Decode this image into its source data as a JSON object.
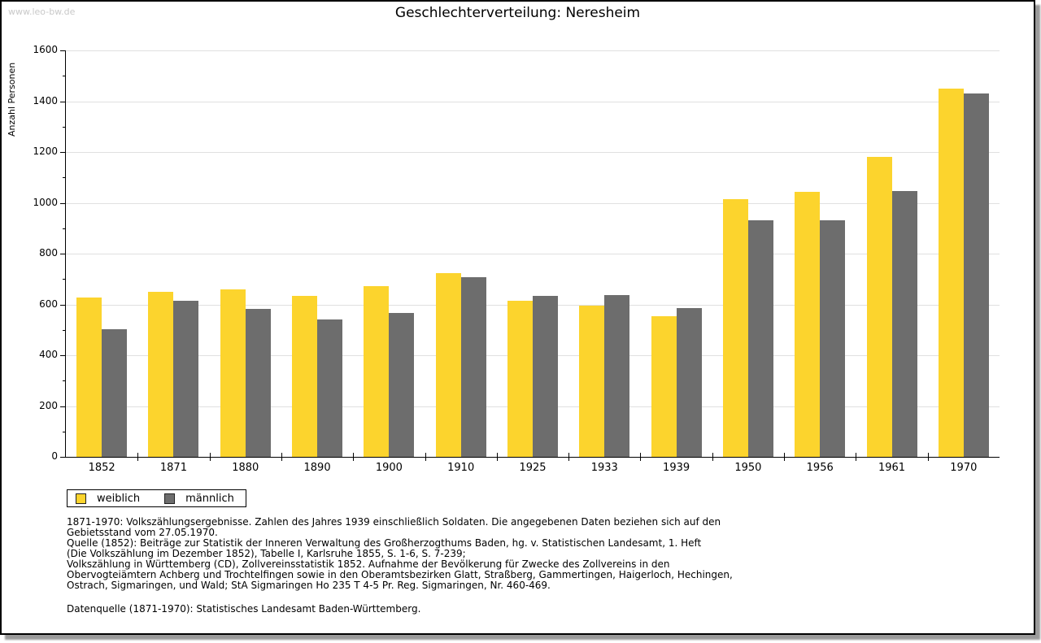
{
  "watermark": {
    "text": "www.leo-bw.de"
  },
  "chart_data": {
    "type": "bar",
    "title": "Geschlechterverteilung: Neresheim",
    "xlabel": "",
    "ylabel": "Anzahl Personen",
    "categories": [
      "1852",
      "1871",
      "1880",
      "1890",
      "1900",
      "1910",
      "1925",
      "1933",
      "1939",
      "1950",
      "1956",
      "1961",
      "1970"
    ],
    "series": [
      {
        "name": "weiblich",
        "color": "#fcd42d",
        "values": [
          627,
          650,
          658,
          634,
          672,
          724,
          614,
          596,
          554,
          1014,
          1043,
          1182,
          1450
        ]
      },
      {
        "name": "männlich",
        "color": "#6d6d6d",
        "values": [
          504,
          614,
          583,
          541,
          565,
          708,
          634,
          637,
          586,
          931,
          931,
          1046,
          1432
        ]
      }
    ],
    "ylim": [
      0,
      1600
    ],
    "ytick_major": 200,
    "ytick_minor": 100,
    "grid": "horizontal-major",
    "gridline_color": "#e0e0e0",
    "legend_position": "bottom-left"
  },
  "legend": {
    "items": [
      {
        "label": "weiblich",
        "color": "#fcd42d"
      },
      {
        "label": "männlich",
        "color": "#6d6d6d"
      }
    ]
  },
  "footnotes": {
    "lines": [
      "1871-1970: Volkszählungsergebnisse. Zahlen des Jahres 1939 einschließlich Soldaten. Die angegebenen Daten beziehen sich auf den",
      "Gebietsstand vom 27.05.1970.",
      "Quelle (1852): Beiträge zur Statistik der Inneren Verwaltung des Großherzogthums Baden, hg. v. Statistischen Landesamt, 1. Heft",
      "(Die Volkszählung im Dezember 1852), Tabelle I, Karlsruhe 1855, S. 1-6, S. 7-239;",
      "Volkszählung in Württemberg (CD), Zollvereinsstatistik 1852. Aufnahme der Bevölkerung für Zwecke des Zollvereins in den",
      "Obervogteiämtern Achberg und Trochtelfingen sowie in den Oberamtsbezirken Glatt, Straßberg, Gammertingen, Haigerloch, Hechingen,",
      "Ostrach, Sigmaringen, und Wald; StA Sigmaringen Ho 235 T 4-5 Pr. Reg. Sigmaringen, Nr. 460-469."
    ]
  },
  "datasource": {
    "text": "Datenquelle (1871-1970): Statistisches Landesamt Baden-Württemberg."
  }
}
